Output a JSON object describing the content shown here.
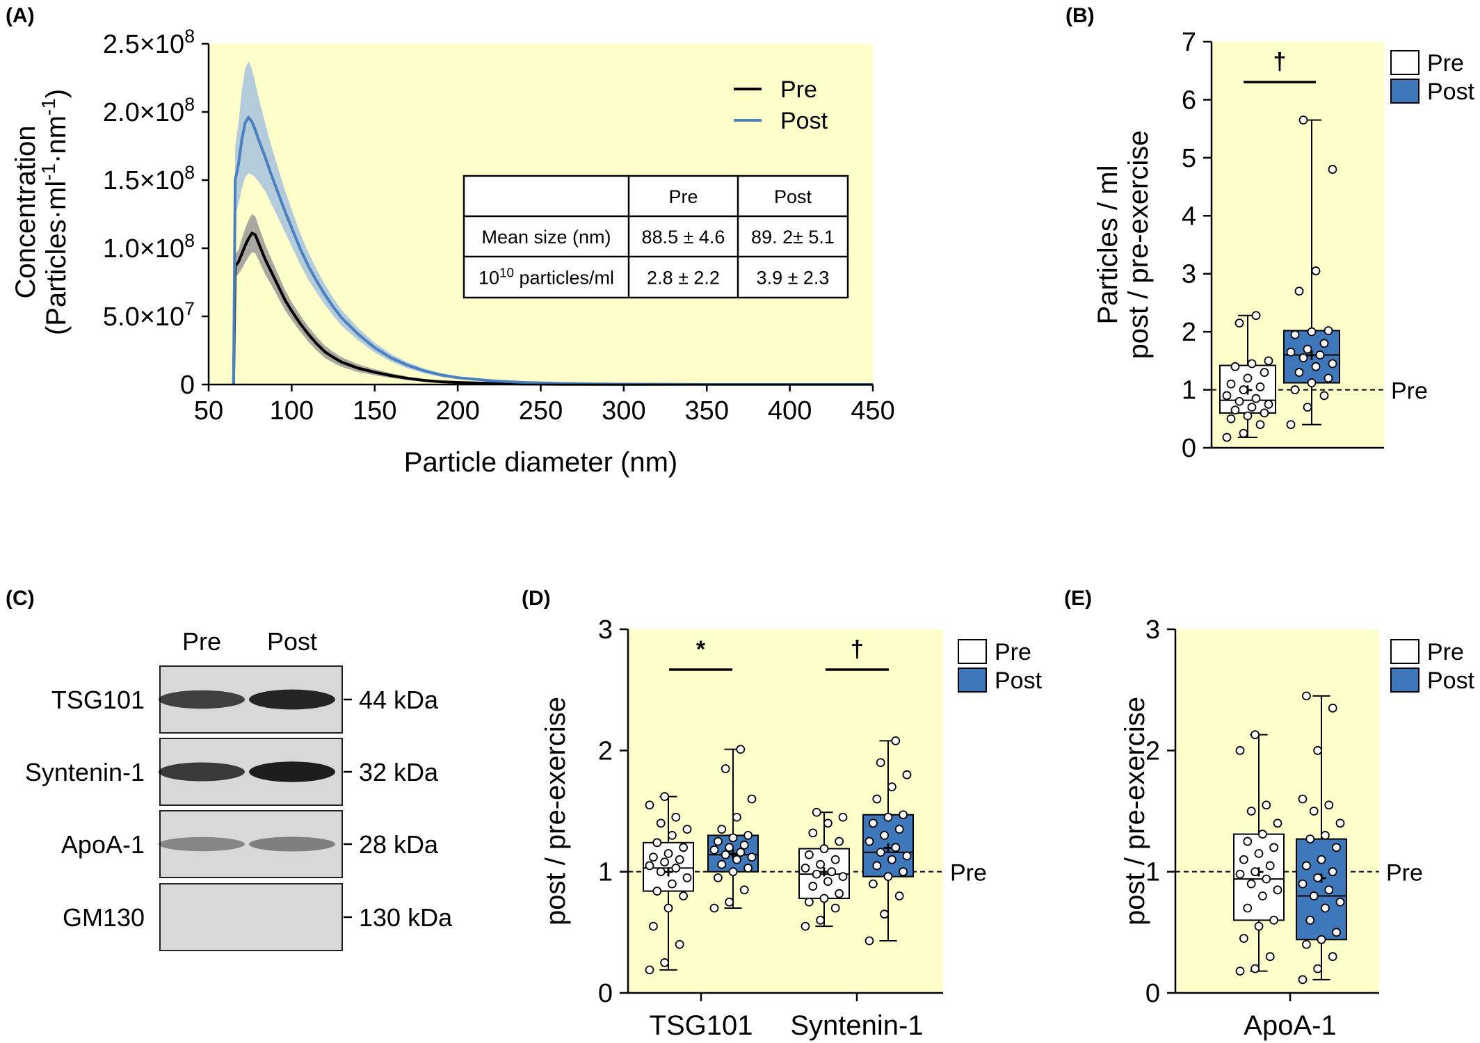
{
  "colors": {
    "panel_background": "#ffffcc",
    "pre_line": "#000000",
    "pre_band": "#999999",
    "post_line": "#4a7fc0",
    "post_band": "#9ab9df",
    "post_box": "#3f77bb",
    "pre_box": "#ffffff"
  },
  "chart_data": [
    {
      "panel": "(A)",
      "type": "line",
      "xlabel": "Particle diameter (nm)",
      "ylabel_line1": "Concentration",
      "ylabel_line2": "(Particles·ml⁻¹·nm⁻¹)",
      "xlim": [
        50,
        450
      ],
      "ylim": [
        0,
        250000000
      ],
      "x_ticks": [
        "50",
        "100",
        "150",
        "200",
        "250",
        "300",
        "350",
        "400",
        "450"
      ],
      "y_ticks": [
        "0",
        "5.0×10⁷",
        "1.0×10⁸",
        "1.5×10⁸",
        "2.0×10⁸",
        "2.5×10⁸"
      ],
      "legend": [
        "Pre",
        "Post"
      ],
      "grid": false,
      "legend_position": "top-right",
      "series": [
        {
          "name": "Pre",
          "x": [
            65,
            66,
            68,
            70,
            72,
            74,
            76,
            78,
            80,
            84,
            88,
            92,
            96,
            100,
            105,
            110,
            115,
            120,
            125,
            130,
            140,
            150,
            160,
            170,
            180,
            190,
            200,
            220,
            240,
            260,
            280,
            300,
            350,
            400,
            450
          ],
          "y": [
            0,
            87000000,
            90000000,
            96000000,
            102000000,
            107000000,
            111000000,
            110000000,
            104000000,
            92000000,
            82000000,
            72000000,
            62000000,
            54000000,
            45000000,
            37000000,
            30000000,
            24000000,
            20000000,
            16500000,
            12000000,
            9000000,
            6500000,
            4500000,
            3000000,
            2000000,
            1500000,
            800000,
            400000,
            200000,
            100000,
            50000,
            0,
            0,
            0
          ],
          "band": [
            0,
            8000000,
            9000000,
            11000000,
            12500000,
            13500000,
            14000000,
            13500000,
            12500000,
            11000000,
            9500000,
            8500000,
            7500000,
            6500000,
            6000000,
            5500000,
            5000000,
            4500000,
            4000000,
            3500000,
            2800000,
            2200000,
            1700000,
            1300000,
            1000000,
            800000,
            600000,
            400000,
            250000,
            150000,
            100000,
            50000,
            0,
            0,
            0
          ]
        },
        {
          "name": "Post",
          "x": [
            65,
            66,
            68,
            70,
            72,
            74,
            76,
            78,
            80,
            84,
            88,
            92,
            96,
            100,
            105,
            110,
            115,
            120,
            125,
            130,
            140,
            150,
            160,
            170,
            180,
            190,
            200,
            220,
            240,
            260,
            280,
            300,
            350,
            400,
            450
          ],
          "y": [
            0,
            150000000,
            162000000,
            180000000,
            192000000,
            196000000,
            193000000,
            187000000,
            180000000,
            167000000,
            153000000,
            140000000,
            127000000,
            115000000,
            100000000,
            87000000,
            76000000,
            66000000,
            57000000,
            49000000,
            37000000,
            27000000,
            19500000,
            14000000,
            10000000,
            7000000,
            5000000,
            2800000,
            1500000,
            800000,
            450000,
            250000,
            0,
            0,
            0
          ],
          "band": [
            0,
            25000000,
            30000000,
            36000000,
            40000000,
            41000000,
            39000000,
            35000000,
            31000000,
            25000000,
            21000000,
            18000000,
            15500000,
            13500000,
            11500000,
            10000000,
            8500000,
            7500000,
            6500000,
            5800000,
            4500000,
            3600000,
            2800000,
            2200000,
            1700000,
            1300000,
            1000000,
            600000,
            350000,
            200000,
            120000,
            80000,
            0,
            0,
            0
          ]
        }
      ],
      "table": {
        "header": [
          "",
          "Pre",
          "Post"
        ],
        "rows": [
          [
            "Mean size (nm)",
            "88.5 ± 4.6",
            "89. 2± 5.1"
          ],
          [
            "10¹⁰ particles/ml",
            "2.8 ± 2.2",
            "3.9 ± 2.3"
          ]
        ]
      }
    },
    {
      "panel": "(B)",
      "type": "box",
      "ylabel_line1": "Particles / ml",
      "ylabel_line2": "post / pre-exercise",
      "ylim": [
        0,
        7
      ],
      "y_ticks": [
        "0",
        "1",
        "2",
        "3",
        "4",
        "5",
        "6",
        "7"
      ],
      "reference_label": "Pre",
      "reference_value": 1,
      "legend": [
        "Pre",
        "Post"
      ],
      "significance": "†",
      "groups": [
        {
          "name": "Pre",
          "min": 0.18,
          "q1": 0.6,
          "median": 0.82,
          "q3": 1.42,
          "max": 2.28,
          "mean": 1.0,
          "points": [
            0.18,
            0.25,
            0.4,
            0.5,
            0.55,
            0.6,
            0.65,
            0.7,
            0.75,
            0.8,
            0.85,
            0.9,
            1.0,
            1.05,
            1.1,
            1.2,
            1.3,
            1.4,
            1.45,
            1.5,
            2.15,
            2.28
          ]
        },
        {
          "name": "Post",
          "min": 0.4,
          "q1": 1.12,
          "median": 1.6,
          "q3": 2.02,
          "max": 5.65,
          "mean": 1.6,
          "points": [
            0.4,
            0.7,
            0.9,
            1.0,
            1.12,
            1.2,
            1.3,
            1.4,
            1.45,
            1.55,
            1.6,
            1.65,
            1.7,
            1.8,
            1.95,
            2.0,
            2.02,
            2.7,
            3.05,
            4.8,
            5.65
          ]
        }
      ]
    },
    {
      "panel": "(D)",
      "type": "box",
      "ylabel": "post / pre-exercise",
      "ylim": [
        0,
        3
      ],
      "y_ticks": [
        "0",
        "1",
        "2",
        "3"
      ],
      "categories": [
        "TSG101",
        "Syntenin-1"
      ],
      "reference_label": "Pre",
      "reference_value": 1,
      "legend": [
        "Pre",
        "Post"
      ],
      "significance": [
        "*",
        "†"
      ],
      "groups": [
        {
          "category": "TSG101",
          "name": "Pre",
          "min": 0.19,
          "q1": 0.84,
          "median": 1.03,
          "q3": 1.24,
          "max": 1.62,
          "mean": 1.0,
          "points": [
            0.19,
            0.25,
            0.4,
            0.55,
            0.7,
            0.8,
            0.84,
            0.9,
            0.95,
            1.0,
            1.03,
            1.05,
            1.08,
            1.1,
            1.12,
            1.15,
            1.2,
            1.24,
            1.3,
            1.35,
            1.4,
            1.45,
            1.55,
            1.62
          ]
        },
        {
          "category": "TSG101",
          "name": "Post",
          "min": 0.7,
          "q1": 1.0,
          "median": 1.14,
          "q3": 1.3,
          "max": 2.01,
          "mean": 1.15,
          "points": [
            0.7,
            0.75,
            0.85,
            0.95,
            1.0,
            1.03,
            1.06,
            1.1,
            1.12,
            1.14,
            1.16,
            1.18,
            1.2,
            1.22,
            1.25,
            1.28,
            1.3,
            1.35,
            1.45,
            1.6,
            1.85,
            2.01
          ]
        },
        {
          "category": "Syntenin-1",
          "name": "Pre",
          "min": 0.55,
          "q1": 0.78,
          "median": 0.98,
          "q3": 1.19,
          "max": 1.49,
          "mean": 1.0,
          "points": [
            0.55,
            0.6,
            0.7,
            0.75,
            0.78,
            0.82,
            0.88,
            0.92,
            0.96,
            0.98,
            1.0,
            1.03,
            1.06,
            1.1,
            1.14,
            1.19,
            1.25,
            1.32,
            1.4,
            1.45,
            1.49
          ]
        },
        {
          "category": "Syntenin-1",
          "name": "Post",
          "min": 0.43,
          "q1": 0.96,
          "median": 1.16,
          "q3": 1.47,
          "max": 2.08,
          "mean": 1.2,
          "points": [
            0.43,
            0.65,
            0.8,
            0.9,
            0.96,
            1.0,
            1.05,
            1.1,
            1.13,
            1.16,
            1.2,
            1.25,
            1.3,
            1.35,
            1.4,
            1.45,
            1.47,
            1.6,
            1.7,
            1.8,
            1.9,
            2.08
          ]
        }
      ]
    },
    {
      "panel": "(E)",
      "type": "box",
      "ylabel": "post / pre-exercise",
      "ylim": [
        0,
        3
      ],
      "y_ticks": [
        "0",
        "1",
        "2",
        "3"
      ],
      "categories": [
        "ApoA-1"
      ],
      "reference_label": "Pre",
      "reference_value": 1,
      "legend": [
        "Pre",
        "Post"
      ],
      "groups": [
        {
          "category": "ApoA-1",
          "name": "Pre",
          "min": 0.18,
          "q1": 0.6,
          "median": 0.94,
          "q3": 1.31,
          "max": 2.13,
          "mean": 1.0,
          "points": [
            0.18,
            0.2,
            0.3,
            0.45,
            0.55,
            0.6,
            0.7,
            0.8,
            0.85,
            0.9,
            0.94,
            0.98,
            1.0,
            1.05,
            1.1,
            1.15,
            1.2,
            1.25,
            1.31,
            1.4,
            1.5,
            1.55,
            2.0,
            2.13
          ]
        },
        {
          "category": "ApoA-1",
          "name": "Post",
          "min": 0.11,
          "q1": 0.44,
          "median": 0.8,
          "q3": 1.27,
          "max": 2.45,
          "mean": 0.95,
          "points": [
            0.11,
            0.2,
            0.3,
            0.4,
            0.44,
            0.5,
            0.6,
            0.7,
            0.75,
            0.8,
            0.85,
            0.9,
            0.95,
            1.0,
            1.05,
            1.1,
            1.2,
            1.27,
            1.3,
            1.4,
            1.5,
            1.55,
            1.6,
            2.0,
            2.35,
            2.45
          ]
        }
      ]
    }
  ],
  "western_blot": {
    "panel": "(C)",
    "lanes": [
      "Pre",
      "Post"
    ],
    "rows": [
      {
        "protein": "TSG101",
        "mw": "44 kDa",
        "intensity": [
          0.7,
          0.9
        ]
      },
      {
        "protein": "Syntenin-1",
        "mw": "32 kDa",
        "intensity": [
          0.75,
          0.95
        ]
      },
      {
        "protein": "ApoA-1",
        "mw": "28 kDa",
        "intensity": [
          0.2,
          0.25
        ]
      },
      {
        "protein": "GM130",
        "mw": "130 kDa",
        "intensity": [
          0.0,
          0.0
        ]
      }
    ]
  }
}
